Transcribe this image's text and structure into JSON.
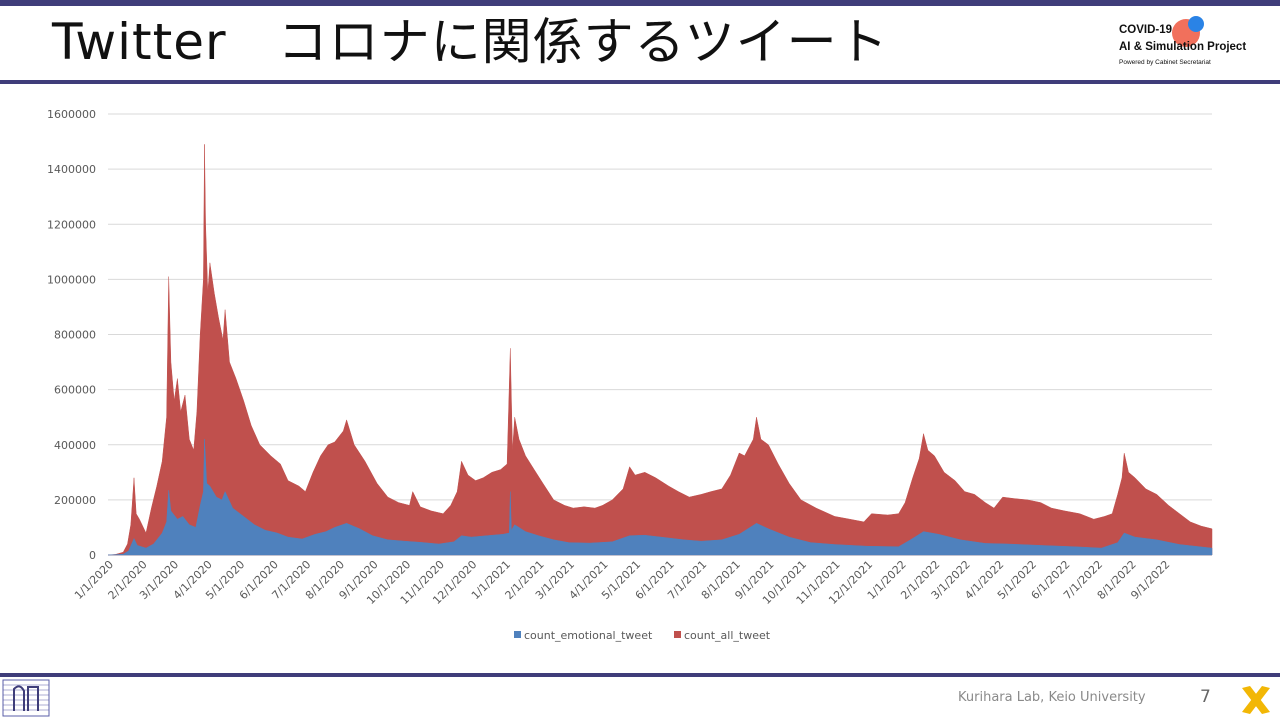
{
  "slide": {
    "title": "Twitter　コロナに関係するツイート",
    "page_number": "7",
    "footer_text": "Kurihara Lab, Keio University"
  },
  "logo": {
    "line1": "COVID-19",
    "line2": "AI & Simulation Project",
    "line3": "Powered by Cabinet Secretariat"
  },
  "colors": {
    "band": "#3f3d7a",
    "all_tweet": "#c0504d",
    "emotional_tweet": "#4f81bd",
    "grid": "#d9d9d9",
    "axis_text": "#595959",
    "x_logo": "#f2b705"
  },
  "chart_data": {
    "type": "area",
    "title": "",
    "xlabel": "",
    "ylabel": "",
    "ylim": [
      0,
      1600000
    ],
    "yticks": [
      0,
      200000,
      400000,
      600000,
      800000,
      1000000,
      1200000,
      1400000,
      1600000
    ],
    "ytick_labels": [
      "0",
      "200000",
      "400000",
      "600000",
      "800000",
      "1000000",
      "1200000",
      "1400000",
      "1600000"
    ],
    "x_range": [
      "2020-01-01",
      "2022-10-15"
    ],
    "xtick_labels": [
      "1/1/2020",
      "2/1/2020",
      "3/1/2020",
      "4/1/2020",
      "5/1/2020",
      "6/1/2020",
      "7/1/2020",
      "8/1/2020",
      "9/1/2020",
      "10/1/2020",
      "11/1/2020",
      "12/1/2020",
      "1/1/2021",
      "2/1/2021",
      "3/1/2021",
      "4/1/2021",
      "5/1/2021",
      "6/1/2021",
      "7/1/2021",
      "8/1/2021",
      "9/1/2021",
      "10/1/2021",
      "11/1/2021",
      "12/1/2021",
      "1/1/2022",
      "2/1/2022",
      "3/1/2022",
      "4/1/2022",
      "5/1/2022",
      "6/1/2022",
      "7/1/2022",
      "8/1/2022",
      "9/1/2022"
    ],
    "grid": true,
    "legend_position": "bottom",
    "stacked": false,
    "series": [
      {
        "name": "count_all_tweet",
        "points": [
          [
            "2020-01-01",
            0
          ],
          [
            "2020-01-08",
            2000
          ],
          [
            "2020-01-15",
            10000
          ],
          [
            "2020-01-19",
            40000
          ],
          [
            "2020-01-22",
            110000
          ],
          [
            "2020-01-25",
            280000
          ],
          [
            "2020-01-27",
            150000
          ],
          [
            "2020-01-30",
            130000
          ],
          [
            "2020-02-05",
            80000
          ],
          [
            "2020-02-10",
            170000
          ],
          [
            "2020-02-15",
            250000
          ],
          [
            "2020-02-20",
            340000
          ],
          [
            "2020-02-24",
            500000
          ],
          [
            "2020-02-26",
            1010000
          ],
          [
            "2020-02-28",
            700000
          ],
          [
            "2020-03-02",
            560000
          ],
          [
            "2020-03-05",
            640000
          ],
          [
            "2020-03-08",
            520000
          ],
          [
            "2020-03-12",
            580000
          ],
          [
            "2020-03-16",
            420000
          ],
          [
            "2020-03-20",
            380000
          ],
          [
            "2020-03-23",
            520000
          ],
          [
            "2020-03-26",
            800000
          ],
          [
            "2020-03-29",
            1000000
          ],
          [
            "2020-03-30",
            1490000
          ],
          [
            "2020-03-31",
            1200000
          ],
          [
            "2020-04-02",
            950000
          ],
          [
            "2020-04-04",
            1060000
          ],
          [
            "2020-04-08",
            950000
          ],
          [
            "2020-04-12",
            860000
          ],
          [
            "2020-04-16",
            780000
          ],
          [
            "2020-04-18",
            890000
          ],
          [
            "2020-04-22",
            700000
          ],
          [
            "2020-04-28",
            640000
          ],
          [
            "2020-05-05",
            560000
          ],
          [
            "2020-05-12",
            470000
          ],
          [
            "2020-05-20",
            400000
          ],
          [
            "2020-05-30",
            360000
          ],
          [
            "2020-06-08",
            330000
          ],
          [
            "2020-06-15",
            270000
          ],
          [
            "2020-06-25",
            250000
          ],
          [
            "2020-07-01",
            230000
          ],
          [
            "2020-07-08",
            300000
          ],
          [
            "2020-07-15",
            360000
          ],
          [
            "2020-07-22",
            400000
          ],
          [
            "2020-07-28",
            410000
          ],
          [
            "2020-08-05",
            450000
          ],
          [
            "2020-08-08",
            490000
          ],
          [
            "2020-08-15",
            400000
          ],
          [
            "2020-08-25",
            340000
          ],
          [
            "2020-09-05",
            260000
          ],
          [
            "2020-09-15",
            210000
          ],
          [
            "2020-09-25",
            190000
          ],
          [
            "2020-10-05",
            180000
          ],
          [
            "2020-10-08",
            230000
          ],
          [
            "2020-10-15",
            175000
          ],
          [
            "2020-10-25",
            160000
          ],
          [
            "2020-11-05",
            150000
          ],
          [
            "2020-11-12",
            180000
          ],
          [
            "2020-11-18",
            230000
          ],
          [
            "2020-11-22",
            340000
          ],
          [
            "2020-11-28",
            290000
          ],
          [
            "2020-12-05",
            270000
          ],
          [
            "2020-12-12",
            280000
          ],
          [
            "2020-12-20",
            300000
          ],
          [
            "2020-12-28",
            310000
          ],
          [
            "2021-01-03",
            330000
          ],
          [
            "2021-01-06",
            750000
          ],
          [
            "2021-01-08",
            380000
          ],
          [
            "2021-01-10",
            500000
          ],
          [
            "2021-01-14",
            420000
          ],
          [
            "2021-01-20",
            360000
          ],
          [
            "2021-01-28",
            310000
          ],
          [
            "2021-02-05",
            260000
          ],
          [
            "2021-02-15",
            200000
          ],
          [
            "2021-02-25",
            180000
          ],
          [
            "2021-03-05",
            170000
          ],
          [
            "2021-03-15",
            175000
          ],
          [
            "2021-03-25",
            170000
          ],
          [
            "2021-04-01",
            180000
          ],
          [
            "2021-04-10",
            200000
          ],
          [
            "2021-04-20",
            240000
          ],
          [
            "2021-04-26",
            320000
          ],
          [
            "2021-05-01",
            290000
          ],
          [
            "2021-05-10",
            300000
          ],
          [
            "2021-05-20",
            280000
          ],
          [
            "2021-06-01",
            250000
          ],
          [
            "2021-06-10",
            230000
          ],
          [
            "2021-06-20",
            210000
          ],
          [
            "2021-07-01",
            220000
          ],
          [
            "2021-07-10",
            230000
          ],
          [
            "2021-07-20",
            240000
          ],
          [
            "2021-07-28",
            290000
          ],
          [
            "2021-08-05",
            370000
          ],
          [
            "2021-08-10",
            360000
          ],
          [
            "2021-08-18",
            420000
          ],
          [
            "2021-08-21",
            500000
          ],
          [
            "2021-08-25",
            420000
          ],
          [
            "2021-09-01",
            400000
          ],
          [
            "2021-09-10",
            330000
          ],
          [
            "2021-09-20",
            260000
          ],
          [
            "2021-10-01",
            200000
          ],
          [
            "2021-10-15",
            170000
          ],
          [
            "2021-11-01",
            140000
          ],
          [
            "2021-11-15",
            130000
          ],
          [
            "2021-11-28",
            120000
          ],
          [
            "2021-12-05",
            150000
          ],
          [
            "2021-12-20",
            145000
          ],
          [
            "2021-12-30",
            150000
          ],
          [
            "2022-01-05",
            190000
          ],
          [
            "2022-01-12",
            280000
          ],
          [
            "2022-01-18",
            350000
          ],
          [
            "2022-01-22",
            440000
          ],
          [
            "2022-01-26",
            380000
          ],
          [
            "2022-02-01",
            360000
          ],
          [
            "2022-02-10",
            300000
          ],
          [
            "2022-02-20",
            270000
          ],
          [
            "2022-03-01",
            230000
          ],
          [
            "2022-03-10",
            220000
          ],
          [
            "2022-03-20",
            190000
          ],
          [
            "2022-03-28",
            170000
          ],
          [
            "2022-04-05",
            210000
          ],
          [
            "2022-04-15",
            205000
          ],
          [
            "2022-04-28",
            200000
          ],
          [
            "2022-05-10",
            190000
          ],
          [
            "2022-05-20",
            170000
          ],
          [
            "2022-06-01",
            160000
          ],
          [
            "2022-06-15",
            150000
          ],
          [
            "2022-06-28",
            130000
          ],
          [
            "2022-07-08",
            140000
          ],
          [
            "2022-07-15",
            150000
          ],
          [
            "2022-07-20",
            220000
          ],
          [
            "2022-07-24",
            280000
          ],
          [
            "2022-07-26",
            370000
          ],
          [
            "2022-07-30",
            300000
          ],
          [
            "2022-08-05",
            280000
          ],
          [
            "2022-08-15",
            240000
          ],
          [
            "2022-08-25",
            220000
          ],
          [
            "2022-09-05",
            180000
          ],
          [
            "2022-09-15",
            150000
          ],
          [
            "2022-09-25",
            120000
          ],
          [
            "2022-10-05",
            105000
          ],
          [
            "2022-10-15",
            95000
          ]
        ]
      },
      {
        "name": "count_emotional_tweet",
        "points": [
          [
            "2020-01-01",
            0
          ],
          [
            "2020-01-15",
            3000
          ],
          [
            "2020-01-20",
            15000
          ],
          [
            "2020-01-25",
            60000
          ],
          [
            "2020-01-28",
            35000
          ],
          [
            "2020-02-05",
            25000
          ],
          [
            "2020-02-12",
            40000
          ],
          [
            "2020-02-20",
            80000
          ],
          [
            "2020-02-24",
            120000
          ],
          [
            "2020-02-26",
            235000
          ],
          [
            "2020-02-28",
            160000
          ],
          [
            "2020-03-05",
            130000
          ],
          [
            "2020-03-10",
            140000
          ],
          [
            "2020-03-16",
            110000
          ],
          [
            "2020-03-22",
            100000
          ],
          [
            "2020-03-26",
            180000
          ],
          [
            "2020-03-29",
            230000
          ],
          [
            "2020-03-30",
            420000
          ],
          [
            "2020-04-01",
            260000
          ],
          [
            "2020-04-04",
            250000
          ],
          [
            "2020-04-10",
            210000
          ],
          [
            "2020-04-15",
            200000
          ],
          [
            "2020-04-18",
            230000
          ],
          [
            "2020-04-25",
            170000
          ],
          [
            "2020-05-05",
            140000
          ],
          [
            "2020-05-15",
            110000
          ],
          [
            "2020-05-25",
            90000
          ],
          [
            "2020-06-05",
            80000
          ],
          [
            "2020-06-15",
            65000
          ],
          [
            "2020-06-28",
            58000
          ],
          [
            "2020-07-10",
            75000
          ],
          [
            "2020-07-20",
            85000
          ],
          [
            "2020-07-28",
            100000
          ],
          [
            "2020-08-08",
            115000
          ],
          [
            "2020-08-20",
            95000
          ],
          [
            "2020-09-01",
            70000
          ],
          [
            "2020-09-15",
            55000
          ],
          [
            "2020-10-01",
            50000
          ],
          [
            "2020-10-15",
            46000
          ],
          [
            "2020-11-01",
            40000
          ],
          [
            "2020-11-15",
            48000
          ],
          [
            "2020-11-22",
            70000
          ],
          [
            "2020-12-01",
            65000
          ],
          [
            "2020-12-15",
            70000
          ],
          [
            "2020-12-30",
            75000
          ],
          [
            "2021-01-05",
            80000
          ],
          [
            "2021-01-06",
            230000
          ],
          [
            "2021-01-07",
            90000
          ],
          [
            "2021-01-10",
            110000
          ],
          [
            "2021-01-20",
            85000
          ],
          [
            "2021-02-01",
            70000
          ],
          [
            "2021-02-15",
            55000
          ],
          [
            "2021-03-01",
            45000
          ],
          [
            "2021-03-20",
            43000
          ],
          [
            "2021-04-10",
            48000
          ],
          [
            "2021-04-26",
            70000
          ],
          [
            "2021-05-10",
            72000
          ],
          [
            "2021-05-25",
            65000
          ],
          [
            "2021-06-15",
            55000
          ],
          [
            "2021-07-01",
            50000
          ],
          [
            "2021-07-20",
            55000
          ],
          [
            "2021-08-05",
            75000
          ],
          [
            "2021-08-21",
            115000
          ],
          [
            "2021-09-01",
            95000
          ],
          [
            "2021-09-20",
            65000
          ],
          [
            "2021-10-10",
            45000
          ],
          [
            "2021-11-01",
            38000
          ],
          [
            "2021-12-01",
            32000
          ],
          [
            "2021-12-30",
            30000
          ],
          [
            "2022-01-10",
            55000
          ],
          [
            "2022-01-22",
            85000
          ],
          [
            "2022-02-05",
            75000
          ],
          [
            "2022-02-25",
            55000
          ],
          [
            "2022-03-20",
            42000
          ],
          [
            "2022-04-10",
            40000
          ],
          [
            "2022-05-10",
            35000
          ],
          [
            "2022-06-10",
            30000
          ],
          [
            "2022-07-05",
            25000
          ],
          [
            "2022-07-20",
            45000
          ],
          [
            "2022-07-26",
            80000
          ],
          [
            "2022-08-05",
            65000
          ],
          [
            "2022-08-25",
            55000
          ],
          [
            "2022-09-15",
            38000
          ],
          [
            "2022-10-15",
            25000
          ]
        ]
      }
    ]
  }
}
